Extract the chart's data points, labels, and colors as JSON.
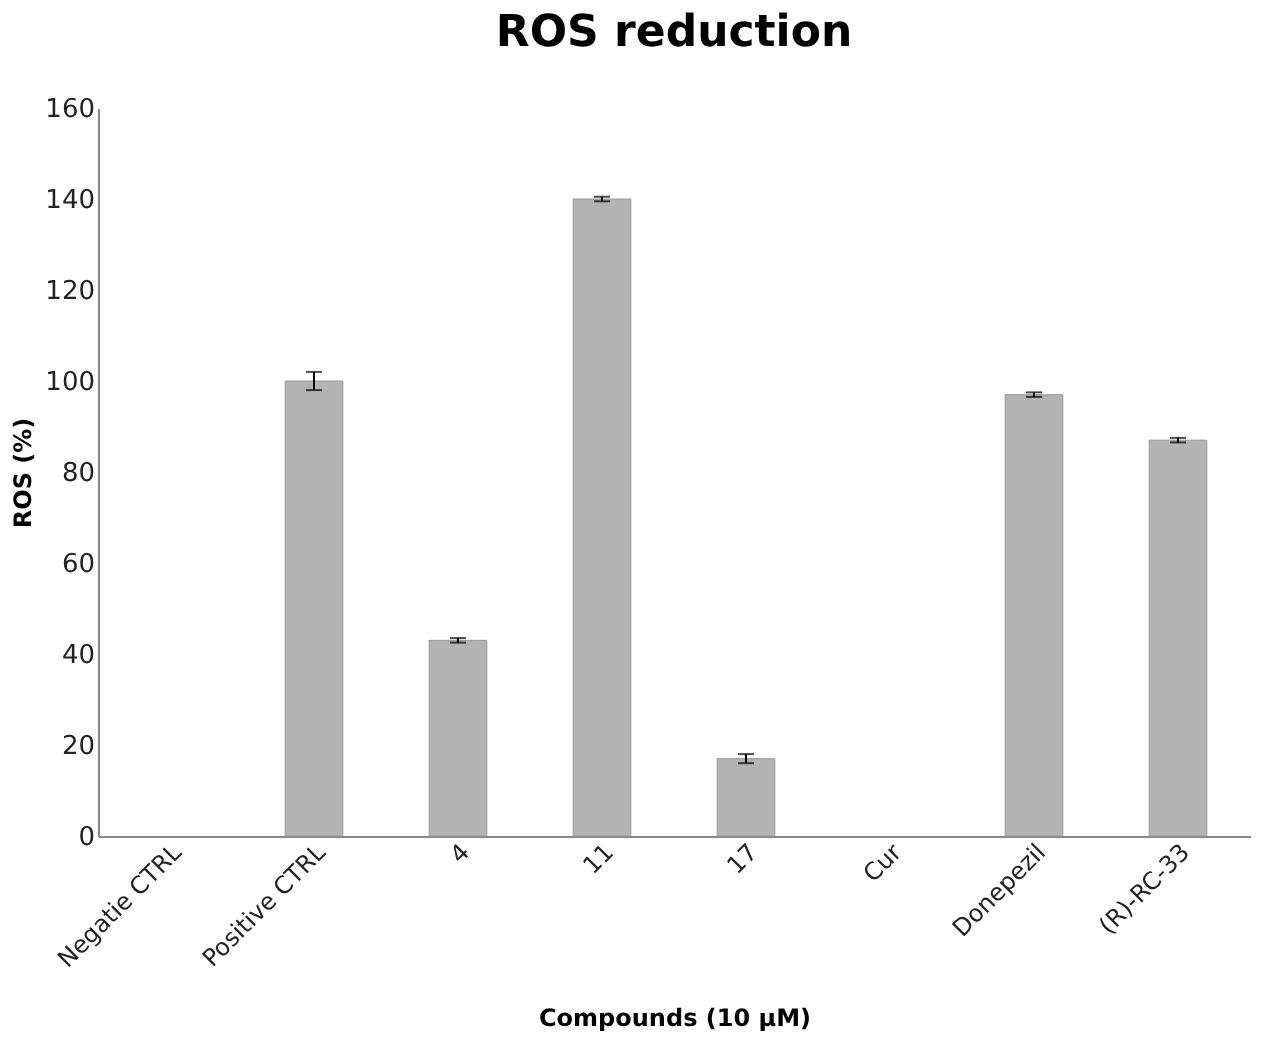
{
  "chart_data": {
    "type": "bar",
    "title": "ROS reduction",
    "xlabel": "Compounds (10 µM)",
    "ylabel": "ROS (%)",
    "categories": [
      "Negatie CTRL",
      "Positive CTRL",
      "4",
      "11",
      "17",
      "Cur",
      "Donepezil",
      "(R)-RC-33"
    ],
    "values": [
      null,
      100,
      43,
      140,
      17,
      null,
      97,
      87
    ],
    "errors": [
      null,
      2,
      0.5,
      0.5,
      1,
      null,
      0.5,
      0.5
    ],
    "color": "#b3b3b3",
    "ylim": [
      0,
      160
    ],
    "yticks": [
      0,
      20,
      40,
      60,
      80,
      100,
      120,
      140,
      160
    ],
    "grid": false
  }
}
